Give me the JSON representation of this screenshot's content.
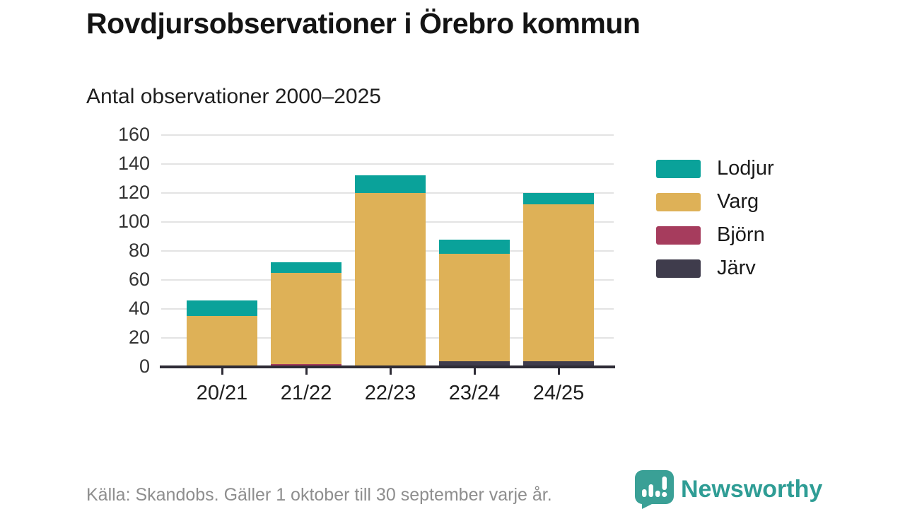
{
  "header": {
    "title": "Rovdjursobservationer i Örebro kommun",
    "subtitle": "Antal observationer 2000–2025"
  },
  "chart_data": {
    "type": "bar",
    "stacked": true,
    "title": "Rovdjursobservationer i Örebro kommun",
    "subtitle": "Antal observationer 2000–2025",
    "categories": [
      "20/21",
      "21/22",
      "22/23",
      "23/24",
      "24/25"
    ],
    "series": [
      {
        "name": "Järv",
        "color": "#3f3c4c",
        "values": [
          0,
          0,
          0,
          4,
          4
        ]
      },
      {
        "name": "Björn",
        "color": "#a63c5d",
        "values": [
          1,
          2,
          1,
          0,
          0
        ]
      },
      {
        "name": "Varg",
        "color": "#deb157",
        "values": [
          34,
          63,
          119,
          74,
          108
        ]
      },
      {
        "name": "Lodjur",
        "color": "#0aa29a",
        "values": [
          11,
          7,
          12,
          10,
          8
        ]
      }
    ],
    "stack_totals": [
      46,
      72,
      132,
      88,
      120
    ],
    "ylim": [
      0,
      160
    ],
    "yticks": [
      0,
      20,
      40,
      60,
      80,
      100,
      120,
      140,
      160
    ],
    "grid": true,
    "legend_position": "right",
    "legend_order": [
      "Lodjur",
      "Varg",
      "Björn",
      "Järv"
    ],
    "colors": {
      "gridline": "#e3e3e3",
      "axis": "#2e2c36",
      "tick_label": "#333333"
    }
  },
  "footer": {
    "source_text": "Källa: Skandobs. Gäller 1 oktober till 30 september varje år.",
    "brand_name": "Newsworthy",
    "brand_color": "#2f9d95",
    "logo_icon_color": "#3aa096"
  }
}
